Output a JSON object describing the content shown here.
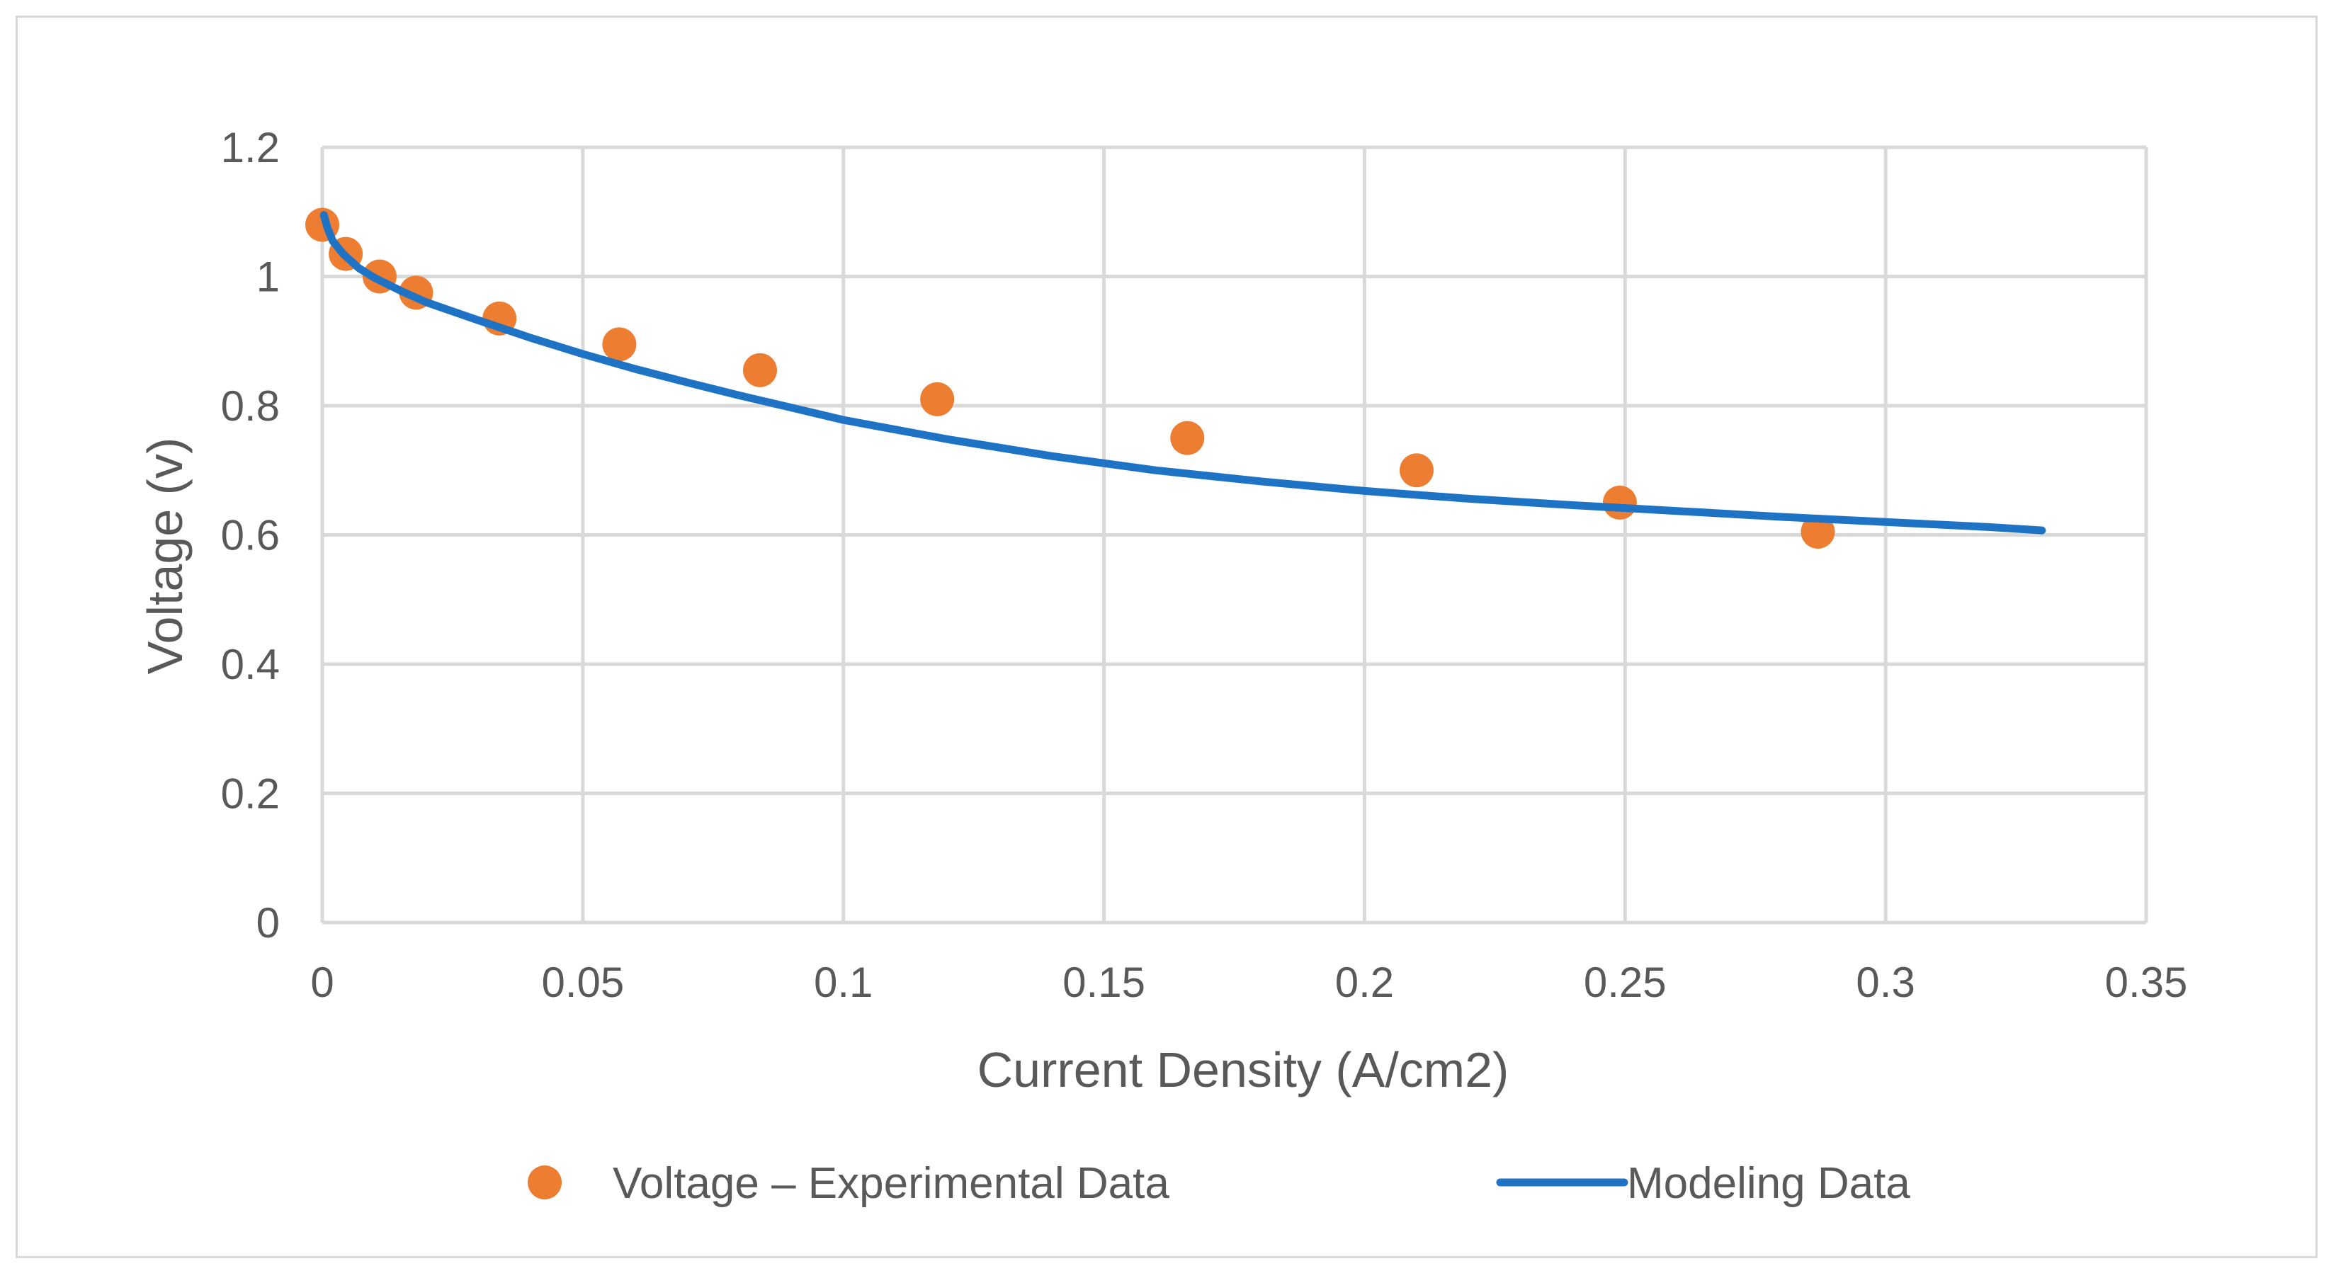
{
  "chart_data": {
    "type": "scatter",
    "title": "",
    "xlabel": "Current Density (A/cm2)",
    "ylabel": "Voltage (v)",
    "xlim": [
      0,
      0.35
    ],
    "ylim": [
      0,
      1.2
    ],
    "x_ticks": [
      0,
      0.05,
      0.1,
      0.15,
      0.2,
      0.25,
      0.3,
      0.35
    ],
    "x_tick_labels": [
      "0",
      "0.05",
      "0.1",
      "0.15",
      "0.2",
      "0.25",
      "0.3",
      "0.35"
    ],
    "y_ticks": [
      0,
      0.2,
      0.4,
      0.6,
      0.8,
      1.0,
      1.2
    ],
    "y_tick_labels": [
      "0",
      "0.2",
      "0.4",
      "0.6",
      "0.8",
      "1",
      "1.2"
    ],
    "grid": true,
    "legend_position": "bottom",
    "series": [
      {
        "name": "Voltage – Experimental Data",
        "kind": "scatter",
        "color": "#ED7D31",
        "x": [
          0.0,
          0.0045,
          0.011,
          0.018,
          0.034,
          0.057,
          0.084,
          0.118,
          0.166,
          0.21,
          0.249,
          0.287
        ],
        "y": [
          1.08,
          1.035,
          1.0,
          0.975,
          0.935,
          0.895,
          0.855,
          0.81,
          0.75,
          0.7,
          0.65,
          0.605
        ]
      },
      {
        "name": "Modeling Data",
        "kind": "line",
        "color": "#1F73C4",
        "x": [
          0.0003,
          0.001,
          0.002,
          0.004,
          0.007,
          0.01,
          0.015,
          0.02,
          0.03,
          0.04,
          0.05,
          0.06,
          0.07,
          0.08,
          0.09,
          0.1,
          0.12,
          0.14,
          0.16,
          0.18,
          0.2,
          0.22,
          0.24,
          0.26,
          0.28,
          0.3,
          0.32,
          0.33
        ],
        "y": [
          1.095,
          1.075,
          1.055,
          1.035,
          1.013,
          0.998,
          0.978,
          0.96,
          0.932,
          0.905,
          0.88,
          0.857,
          0.836,
          0.816,
          0.797,
          0.778,
          0.748,
          0.722,
          0.7,
          0.683,
          0.668,
          0.656,
          0.646,
          0.637,
          0.628,
          0.62,
          0.612,
          0.607
        ]
      }
    ]
  }
}
